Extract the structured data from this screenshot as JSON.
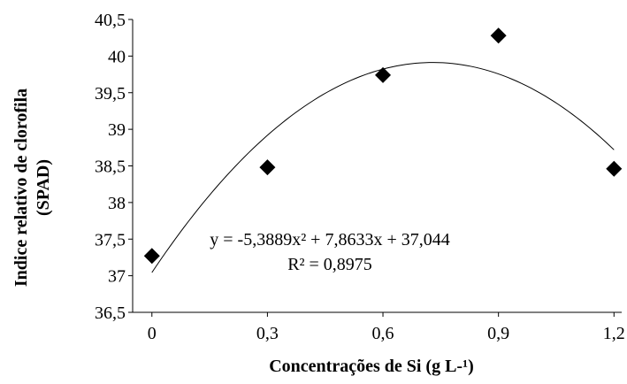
{
  "chart_data": {
    "type": "scatter",
    "y_label": [
      "Indice relativo de clorofila",
      "(SPAD)"
    ],
    "x_label": "Concentrações de Si (g L-¹)",
    "x": [
      0,
      0.3,
      0.6,
      0.9,
      1.2
    ],
    "values": [
      37.27,
      38.48,
      39.74,
      40.28,
      38.46
    ],
    "color": "#000000",
    "xlim": [
      -0.05,
      1.22
    ],
    "xticks": [
      0,
      {
        "value": 0.3,
        "label": "0,3"
      },
      {
        "value": 0.6,
        "label": "0,6"
      },
      {
        "value": 0.9,
        "label": "0,9"
      },
      {
        "value": 1.2,
        "label": "1,2"
      }
    ],
    "ylim": [
      36.5,
      40.5
    ],
    "yticks": [
      {
        "value": 36.5,
        "label": "36,5"
      },
      37,
      {
        "value": 37.5,
        "label": "37,5"
      },
      38,
      {
        "value": 38.5,
        "label": "38,5"
      },
      39,
      {
        "value": 39.5,
        "label": "39,5"
      },
      40,
      {
        "value": 40.5,
        "label": "40,5"
      }
    ],
    "trendline": {
      "coefficients": [
        -5.3889,
        7.8633,
        37.044
      ],
      "equation": "y = -5,3889x² + 7,8633x + 37,044",
      "r2": "R² = 0,8975"
    }
  }
}
